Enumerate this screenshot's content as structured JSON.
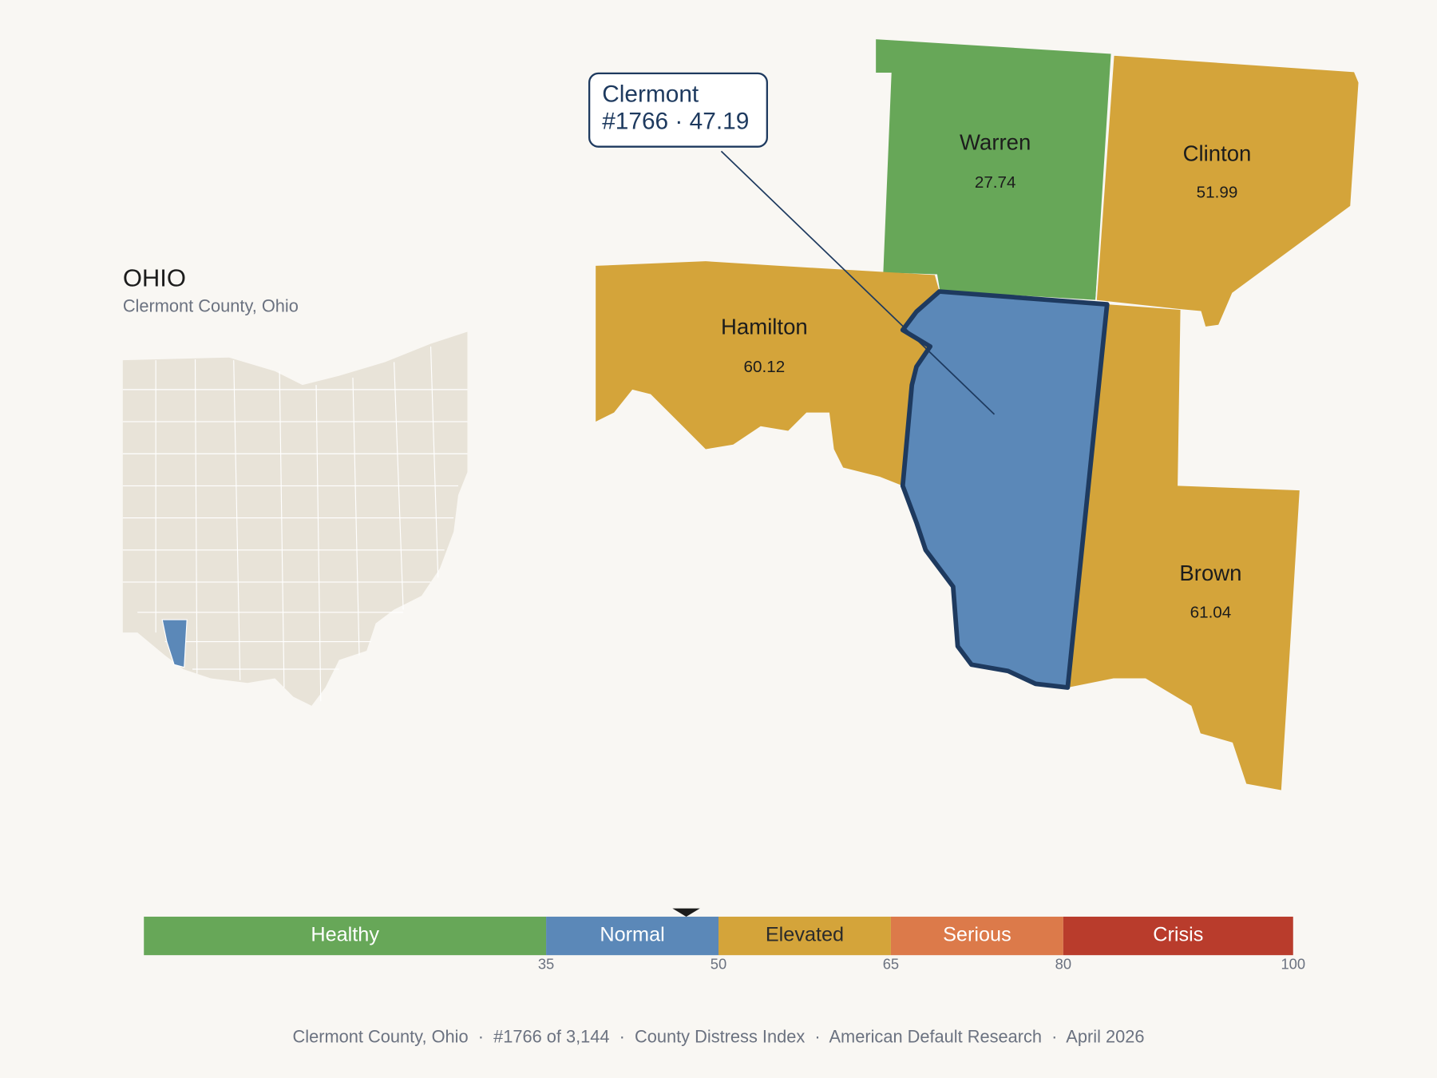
{
  "state": {
    "title": "OHIO",
    "subtitle": "Clermont County, Ohio"
  },
  "counties": [
    {
      "name": "Warren",
      "value": 27.74
    },
    {
      "name": "Clinton",
      "value": 51.99
    },
    {
      "name": "Hamilton",
      "value": 60.12
    },
    {
      "name": "Brown",
      "value": 61.04
    },
    {
      "name": "Clermont",
      "value": 47.19
    }
  ],
  "callout": {
    "name": "Clermont",
    "detail": "#1766 · 47.19"
  },
  "scale": {
    "range": [
      0,
      100
    ],
    "bands": [
      {
        "label": "Healthy",
        "to": 35,
        "color": "#67a758",
        "text_color": "#ffffff"
      },
      {
        "label": "Normal",
        "to": 50,
        "color": "#5b88b8",
        "text_color": "#ffffff"
      },
      {
        "label": "Elevated",
        "to": 65,
        "color": "#d4a43a",
        "text_color": "#2b2b2b"
      },
      {
        "label": "Serious",
        "to": 80,
        "color": "#dc7a4a",
        "text_color": "#ffffff"
      },
      {
        "label": "Crisis",
        "to": 100,
        "color": "#b93c2c",
        "text_color": "#ffffff"
      }
    ]
  },
  "footer": "Clermont County, Ohio  ·  #1766 of 3,144  ·  County Distress Index  ·  American Default Research  ·  April 2026"
}
